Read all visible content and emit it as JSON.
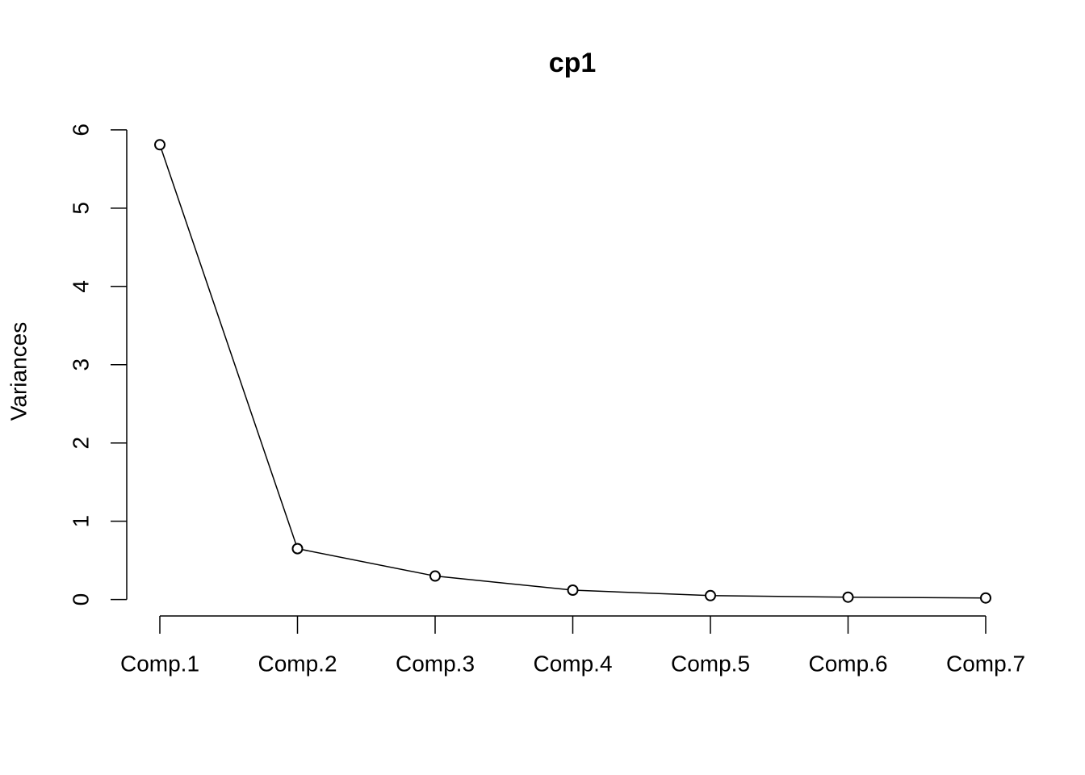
{
  "chart_data": {
    "type": "line",
    "title": "cp1",
    "y_label": "Variances",
    "categories": [
      "Comp.1",
      "Comp.2",
      "Comp.3",
      "Comp.4",
      "Comp.5",
      "Comp.6",
      "Comp.7"
    ],
    "values": [
      5.81,
      0.65,
      0.3,
      0.12,
      0.05,
      0.03,
      0.02
    ],
    "color": "#000000",
    "ylim": [
      -0.21,
      6.04
    ],
    "yticks": [
      0,
      1,
      2,
      3,
      4,
      5,
      6
    ]
  }
}
